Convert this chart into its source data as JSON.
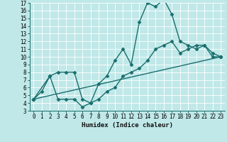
{
  "xlabel": "Humidex (Indice chaleur)",
  "xlim": [
    -0.5,
    23.5
  ],
  "ylim": [
    3,
    17
  ],
  "xticks": [
    0,
    1,
    2,
    3,
    4,
    5,
    6,
    7,
    8,
    9,
    10,
    11,
    12,
    13,
    14,
    15,
    16,
    17,
    18,
    19,
    20,
    21,
    22,
    23
  ],
  "yticks": [
    3,
    4,
    5,
    6,
    7,
    8,
    9,
    10,
    11,
    12,
    13,
    14,
    15,
    16,
    17
  ],
  "bg_color": "#c0e8e8",
  "line_color": "#1a6e6e",
  "line_width": 1.0,
  "marker": "D",
  "marker_size": 2.5,
  "line1_x": [
    0,
    1,
    2,
    3,
    4,
    5,
    6,
    7,
    8,
    9,
    10,
    11,
    12,
    13,
    14,
    15,
    16,
    17,
    18,
    19,
    20,
    21,
    22,
    23
  ],
  "line1_y": [
    4.5,
    5.5,
    7.5,
    4.5,
    4.5,
    4.5,
    3.5,
    4.0,
    6.5,
    7.5,
    9.5,
    11.0,
    9.0,
    14.5,
    17.0,
    16.5,
    17.5,
    15.5,
    12.0,
    11.5,
    11.0,
    11.5,
    10.0,
    10.0
  ],
  "line2_x": [
    0,
    2,
    3,
    4,
    5,
    6,
    7,
    8,
    9,
    10,
    11,
    12,
    13,
    14,
    15,
    16,
    17,
    18,
    19,
    20,
    21,
    22,
    23
  ],
  "line2_y": [
    4.5,
    7.5,
    8.0,
    8.0,
    8.0,
    4.5,
    4.0,
    4.5,
    5.5,
    6.0,
    7.5,
    8.0,
    8.5,
    9.5,
    11.0,
    11.5,
    12.0,
    10.5,
    11.0,
    11.5,
    11.5,
    10.5,
    10.0
  ],
  "line3_x": [
    0,
    23
  ],
  "line3_y": [
    4.5,
    10.0
  ]
}
